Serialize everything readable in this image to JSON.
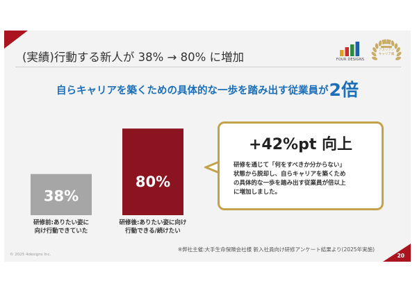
{
  "slide": {
    "title": "(実績)行動する新人が 38% → 80% に増加",
    "headline_text": "自らキャリアを築くための具体的な一歩を踏み出す従業員が",
    "headline_emphasis": "2倍",
    "footnote": "※弊社主催:大手生命保険会社様 新入社員向け研修アンケート結果より(2025年実施)",
    "copyright": "© 2025 4designs Inc.",
    "page_number": "20"
  },
  "logo": {
    "text": "FOUR DESIGNS",
    "bar_colors": [
      "#e0a21a",
      "#d12a27",
      "#2e8a3e",
      "#1f5fa8"
    ]
  },
  "award": {
    "text_line1": "アスリアン",
    "text_line2": "キャリア賞",
    "color": "#c9ad66"
  },
  "callout": {
    "title": "+42%pt 向上",
    "body": "研修を通じて「何をすべきか分からない」\n状態から脱却し、自らキャリアを築くため\nの具体的な一歩を踏み出す従業員が倍以上\nに増加しました。",
    "border_color": "#c4a24a"
  },
  "chart_data": {
    "type": "bar",
    "categories": [
      "研修前:ありたい姿に\n向け行動できていた",
      "研修後:ありたい姿に向け\n行動できる/続けたい"
    ],
    "values": [
      38,
      80
    ],
    "value_labels": [
      "38%",
      "80%"
    ],
    "colors": [
      "#a6a6a6",
      "#8c1421"
    ],
    "ylim": [
      0,
      100
    ]
  }
}
